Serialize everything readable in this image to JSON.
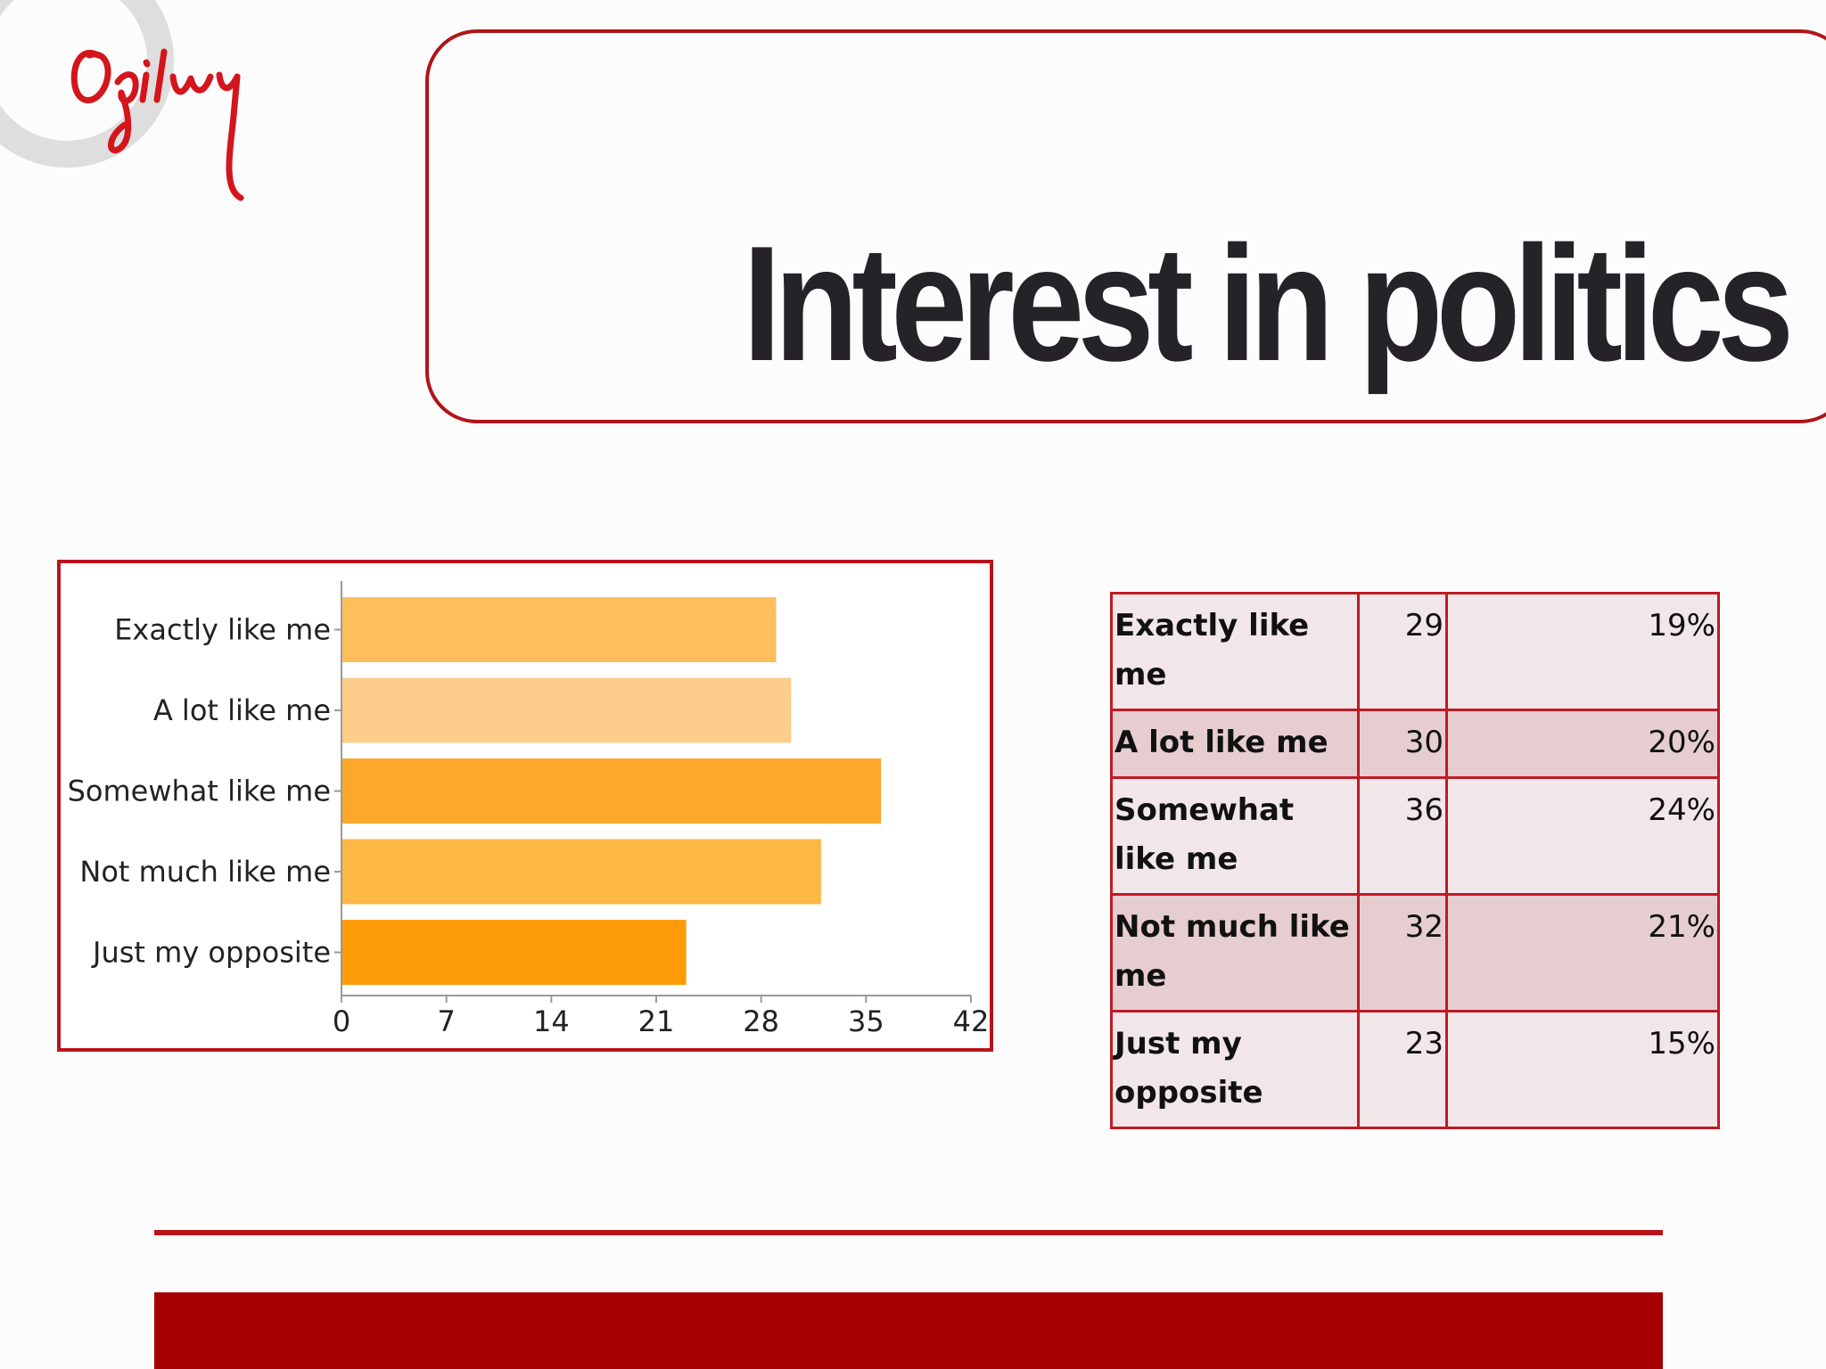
{
  "brand": {
    "logo_text": "Ogilvy",
    "accent_color": "#b8141b"
  },
  "slide": {
    "title": "Interest in politics"
  },
  "chart_data": {
    "type": "bar",
    "orientation": "horizontal",
    "categories": [
      "Exactly like me",
      "A lot like me",
      "Somewhat like me",
      "Not much like me",
      "Just my opposite"
    ],
    "values": [
      29,
      30,
      36,
      32,
      23
    ],
    "xlim": [
      0,
      42
    ],
    "xticks": [
      0,
      7,
      14,
      21,
      28,
      35,
      42
    ],
    "bar_colors": [
      "#fdbf5e",
      "#fdcd8b",
      "#fda82b",
      "#fdb745",
      "#fd9c08"
    ],
    "grid": false
  },
  "table": {
    "rows": [
      {
        "label": "Exactly like me",
        "count": "29",
        "percent": "19%"
      },
      {
        "label": "A lot like me",
        "count": "30",
        "percent": "20%"
      },
      {
        "label": "Somewhat like me",
        "count": "36",
        "percent": "24%"
      },
      {
        "label": "Not much like me",
        "count": "32",
        "percent": "21%"
      },
      {
        "label": "Just my opposite",
        "count": "23",
        "percent": "15%"
      }
    ]
  }
}
